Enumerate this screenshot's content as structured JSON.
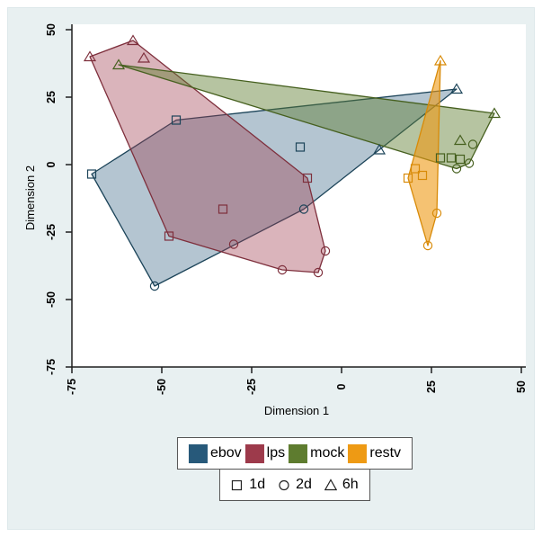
{
  "chart_data": {
    "type": "scatter",
    "title": "",
    "xlabel": "Dimension 1",
    "ylabel": "Dimension 2",
    "xlim": [
      -75,
      50
    ],
    "ylim": [
      -75,
      50
    ],
    "xticks": [
      -75,
      -50,
      -25,
      0,
      25,
      50
    ],
    "yticks": [
      50,
      25,
      0,
      -25,
      -50,
      -75
    ],
    "grid": false,
    "legend_position": "bottom",
    "hulls": true,
    "series": [
      {
        "name": "ebov",
        "color": "#27597a",
        "stroke": "#1c4459",
        "fill_opacity": 0.35,
        "points": [
          {
            "x": -69.5,
            "y": -3.5,
            "t": "1d"
          },
          {
            "x": -46.0,
            "y": 16.5,
            "t": "1d"
          },
          {
            "x": -11.5,
            "y": 6.5,
            "t": "1d"
          },
          {
            "x": -52.0,
            "y": -45.0,
            "t": "2d"
          },
          {
            "x": -10.5,
            "y": -16.5,
            "t": "2d"
          },
          {
            "x": 32.0,
            "y": 28.0,
            "t": "6h"
          },
          {
            "x": 10.5,
            "y": 5.5,
            "t": "6h"
          }
        ]
      },
      {
        "name": "lps",
        "color": "#9d3a4b",
        "stroke": "#7e2f3c",
        "fill_opacity": 0.38,
        "points": [
          {
            "x": -70.0,
            "y": 40.0,
            "t": "6h"
          },
          {
            "x": -58.0,
            "y": 46.0,
            "t": "6h"
          },
          {
            "x": -55.0,
            "y": 39.5,
            "t": "6h"
          },
          {
            "x": -48.0,
            "y": -26.5,
            "t": "1d"
          },
          {
            "x": -33.0,
            "y": -16.5,
            "t": "1d"
          },
          {
            "x": -9.5,
            "y": -5.0,
            "t": "1d"
          },
          {
            "x": -30.0,
            "y": -29.5,
            "t": "2d"
          },
          {
            "x": -16.5,
            "y": -39.0,
            "t": "2d"
          },
          {
            "x": -6.5,
            "y": -40.0,
            "t": "2d"
          },
          {
            "x": -4.5,
            "y": -32.0,
            "t": "2d"
          }
        ]
      },
      {
        "name": "mock",
        "color": "#5e7c2f",
        "stroke": "#46601f",
        "fill_opacity": 0.45,
        "points": [
          {
            "x": -62.0,
            "y": 37.0,
            "t": "6h"
          },
          {
            "x": 42.5,
            "y": 19.0,
            "t": "6h"
          },
          {
            "x": 33.0,
            "y": 9.0,
            "t": "6h"
          },
          {
            "x": 27.5,
            "y": 2.5,
            "t": "1d"
          },
          {
            "x": 30.5,
            "y": 2.5,
            "t": "1d"
          },
          {
            "x": 33.0,
            "y": 2.0,
            "t": "1d"
          },
          {
            "x": 36.5,
            "y": 7.5,
            "t": "2d"
          },
          {
            "x": 32.0,
            "y": -1.5,
            "t": "2d"
          },
          {
            "x": 35.5,
            "y": 0.5,
            "t": "2d"
          }
        ]
      },
      {
        "name": "restv",
        "color": "#ee9a14",
        "stroke": "#d88a08",
        "fill_opacity": 0.6,
        "points": [
          {
            "x": 27.5,
            "y": 38.5,
            "t": "6h"
          },
          {
            "x": 18.5,
            "y": -5.0,
            "t": "1d"
          },
          {
            "x": 20.5,
            "y": -1.5,
            "t": "1d"
          },
          {
            "x": 22.5,
            "y": -4.0,
            "t": "1d"
          },
          {
            "x": 26.5,
            "y": -18.0,
            "t": "2d"
          },
          {
            "x": 24.0,
            "y": -30.0,
            "t": "2d"
          }
        ]
      }
    ]
  },
  "legend": {
    "groups": [
      {
        "label": "ebov",
        "color": "#27597a"
      },
      {
        "label": "lps",
        "color": "#9d3a4b"
      },
      {
        "label": "mock",
        "color": "#5e7c2f"
      },
      {
        "label": "restv",
        "color": "#ee9a14"
      }
    ],
    "shapes": [
      {
        "label": "1d",
        "shape": "square"
      },
      {
        "label": "2d",
        "shape": "circle"
      },
      {
        "label": "6h",
        "shape": "triangle"
      }
    ]
  },
  "colors": {
    "canvas": "#e8f0f1",
    "plot_background": "#ffffff",
    "axis": "#1f1f1f",
    "legend_border": "#545454"
  }
}
